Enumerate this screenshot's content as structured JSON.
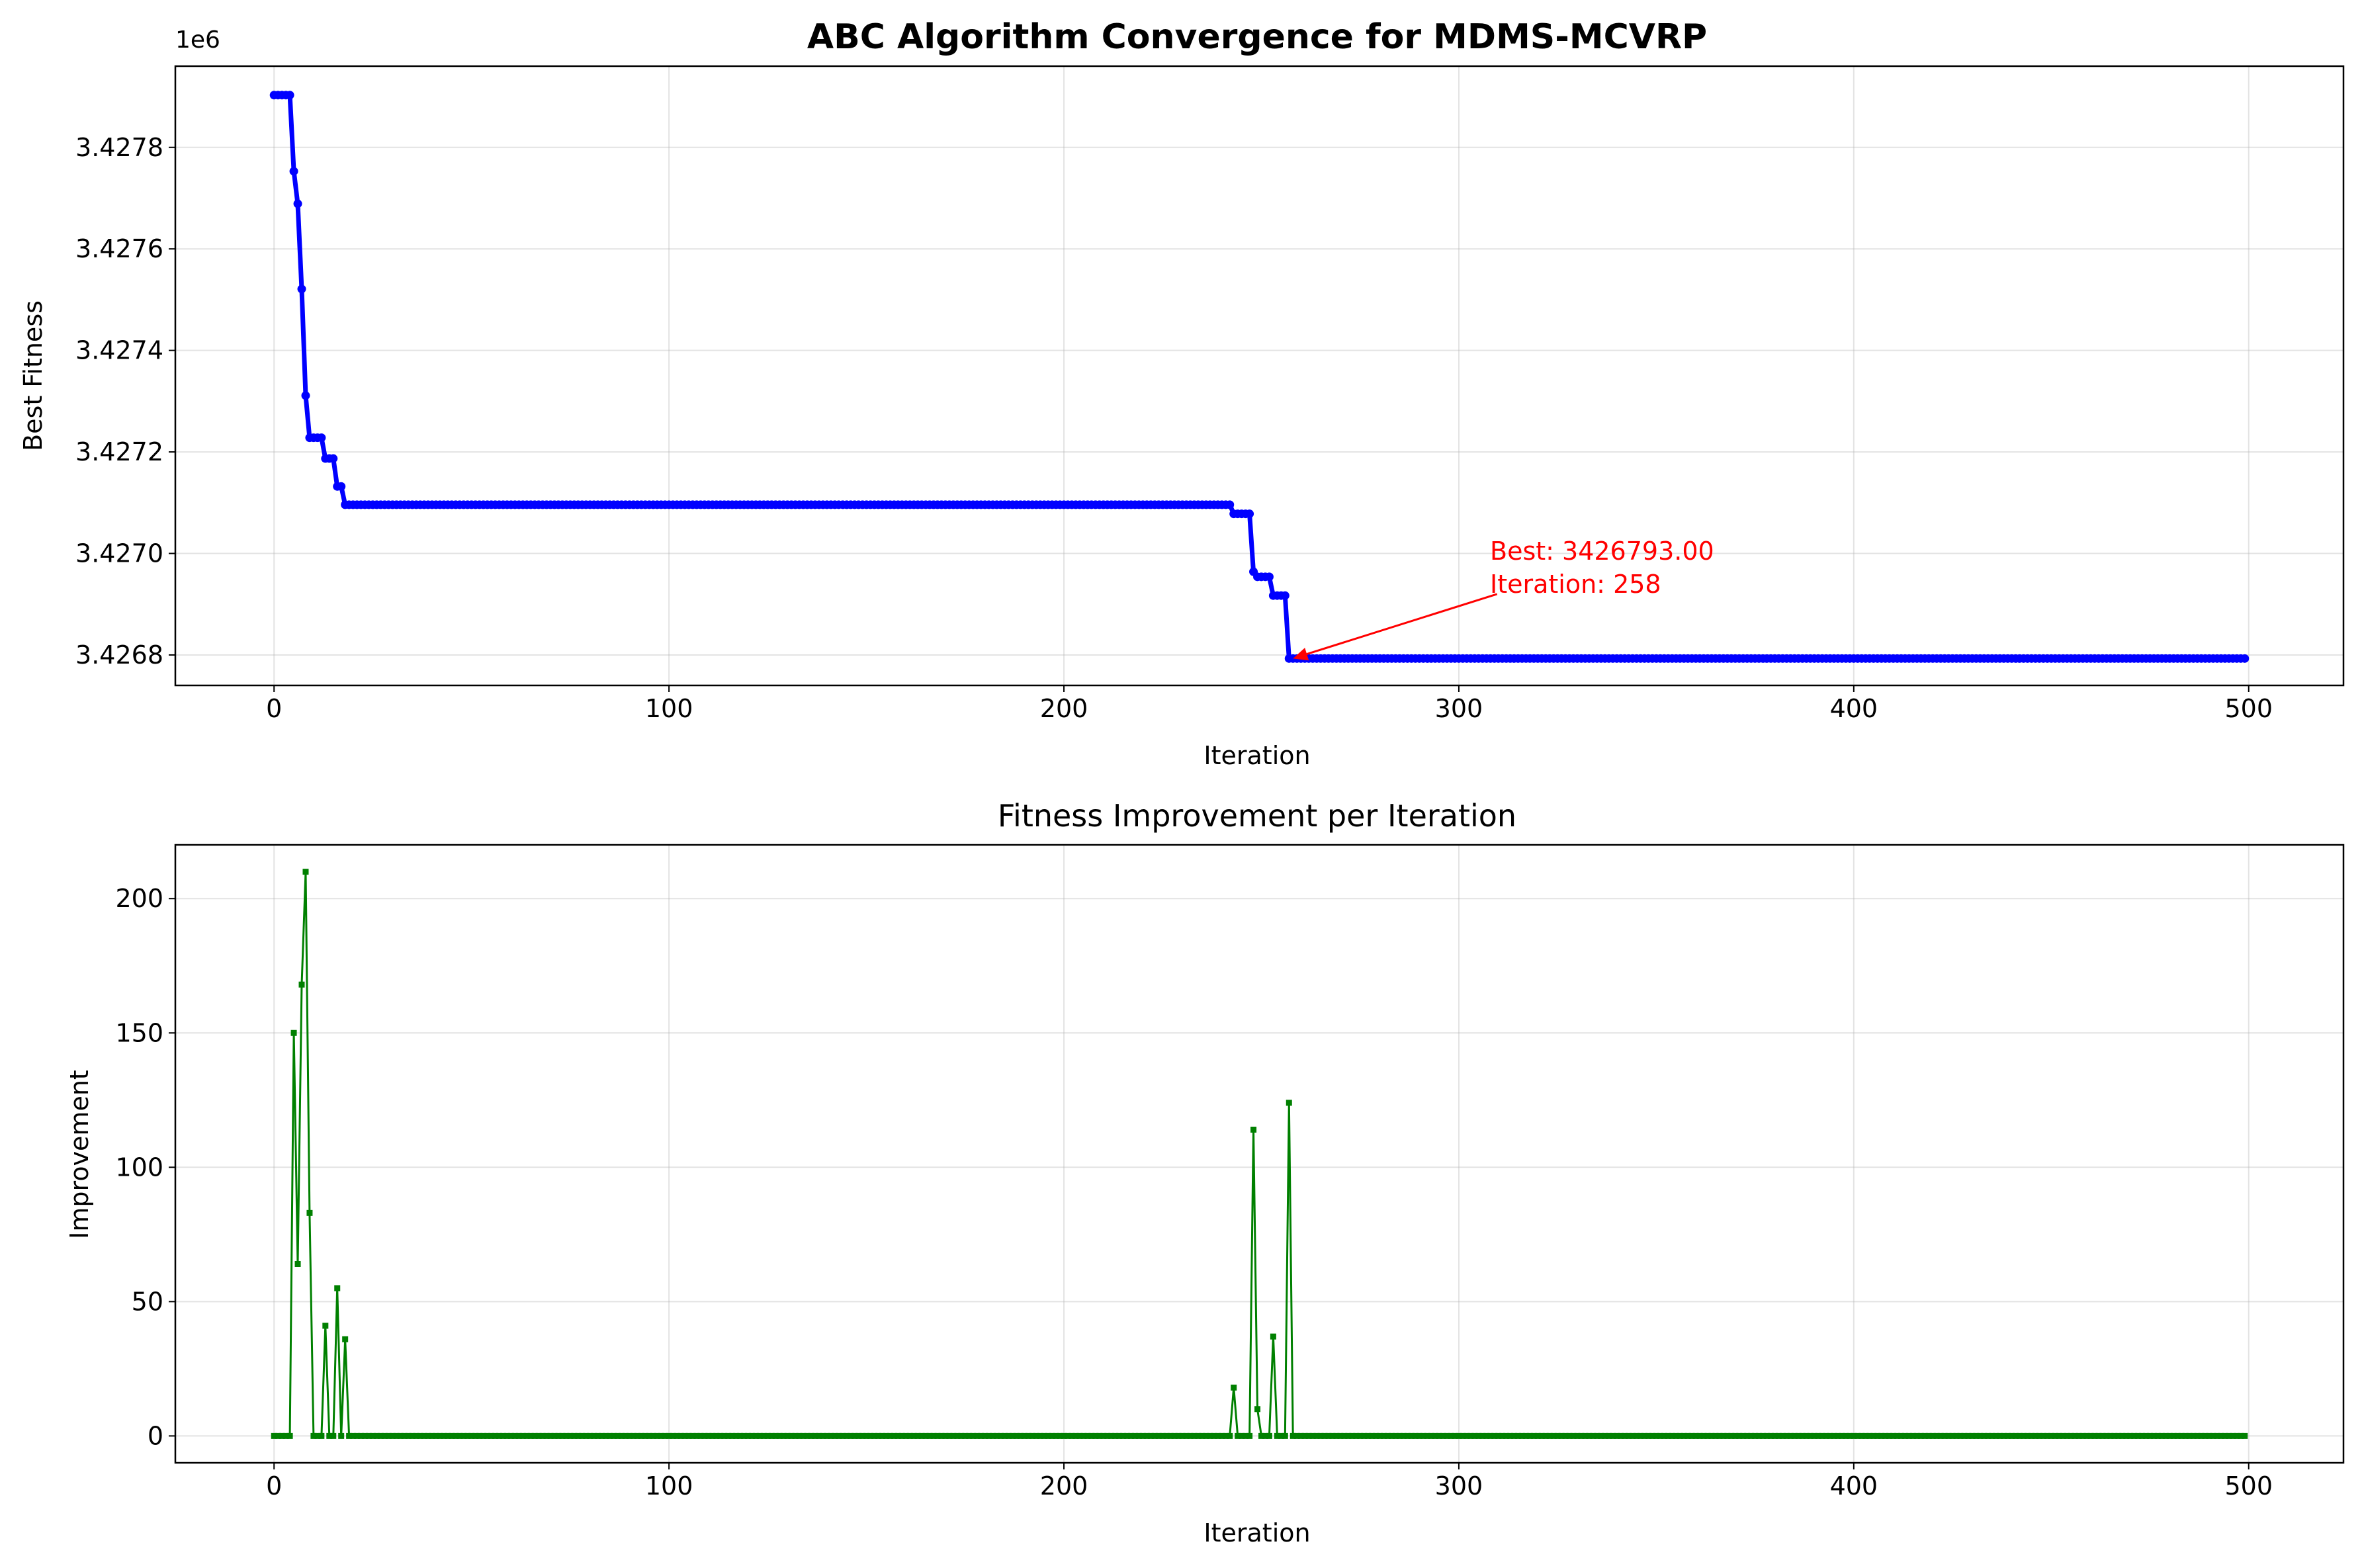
{
  "colors": {
    "line1": "#0000ff",
    "line2": "#008000",
    "annotation": "#ff0000",
    "grid": "#b0b0b0",
    "axis": "#000000"
  },
  "chart_data": [
    {
      "type": "line",
      "title": "ABC Algorithm Convergence for MDMS-MCVRP",
      "xlabel": "Iteration",
      "ylabel": "Best Fitness",
      "offset_label": "1e6",
      "xlim": [
        -25,
        524
      ],
      "ylim": [
        3.42674,
        3.42796
      ],
      "x_ticks": [
        0,
        100,
        200,
        300,
        400,
        500
      ],
      "y_ticks": [
        3.4268,
        3.427,
        3.4272,
        3.4274,
        3.4276,
        3.4278
      ],
      "y_tick_labels": [
        "3.4268",
        "3.4270",
        "3.4272",
        "3.4274",
        "3.4276",
        "3.4278"
      ],
      "grid": true,
      "series": [
        {
          "color": "#0000ff",
          "marker": "circle",
          "breakpoints": [
            [
              0,
              3427903
            ],
            [
              5,
              3427753
            ],
            [
              6,
              3427689
            ],
            [
              7,
              3427521
            ],
            [
              8,
              3427311
            ],
            [
              9,
              3427228
            ],
            [
              13,
              3427187
            ],
            [
              16,
              3427132
            ],
            [
              18,
              3427096
            ],
            [
              243,
              3427078
            ],
            [
              248,
              3426964
            ],
            [
              249,
              3426954
            ],
            [
              253,
              3426917
            ],
            [
              257,
              3426793
            ]
          ],
          "x_max": 499
        }
      ],
      "annotation": {
        "lines": [
          "Best: 3426793.00",
          "Iteration: 258"
        ],
        "xy": [
          258,
          3426793
        ],
        "xytext": [
          308,
          3426920
        ]
      }
    },
    {
      "type": "line",
      "title": "Fitness Improvement per Iteration",
      "xlabel": "Iteration",
      "ylabel": "Improvement",
      "xlim": [
        -25,
        524
      ],
      "ylim": [
        -10,
        220
      ],
      "x_ticks": [
        0,
        100,
        200,
        300,
        400,
        500
      ],
      "y_ticks": [
        0,
        50,
        100,
        150,
        200
      ],
      "grid": true,
      "series": [
        {
          "color": "#008000",
          "marker": "square",
          "x_max": 499,
          "nonzero": [
            [
              5,
              150
            ],
            [
              6,
              64
            ],
            [
              7,
              168
            ],
            [
              8,
              210
            ],
            [
              9,
              83
            ],
            [
              13,
              41
            ],
            [
              16,
              55
            ],
            [
              18,
              36
            ],
            [
              243,
              18
            ],
            [
              248,
              114
            ],
            [
              249,
              10
            ],
            [
              253,
              37
            ],
            [
              257,
              124
            ]
          ]
        }
      ]
    }
  ]
}
